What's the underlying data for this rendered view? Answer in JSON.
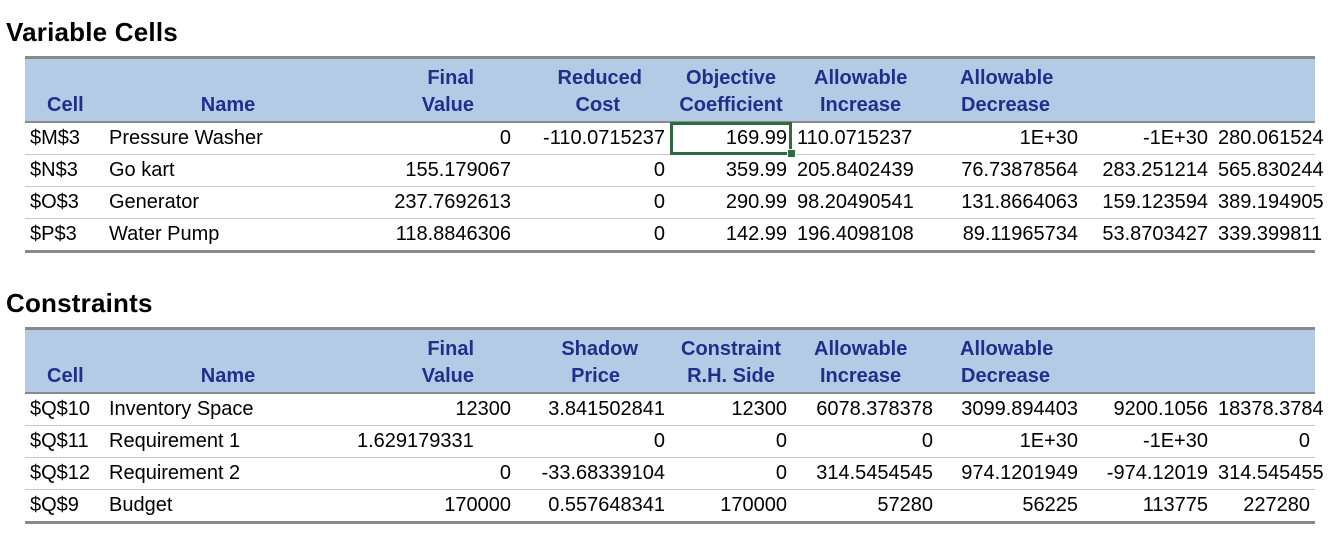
{
  "variable_cells": {
    "title": "Variable Cells",
    "header_top": [
      "",
      "",
      "Final",
      "Reduced",
      "Objective",
      "Allowable",
      "Allowable",
      "",
      ""
    ],
    "header_bottom": [
      "Cell",
      "Name",
      "Value",
      "Cost",
      "Coefficient",
      "Increase",
      "Decrease",
      "",
      ""
    ],
    "rows": [
      [
        "$M$3",
        "Pressure Washer",
        "0",
        "-110.0715237",
        "169.99",
        "110.0715237",
        "1E+30",
        "-1E+30",
        "280.061524"
      ],
      [
        "$N$3",
        "Go kart",
        "155.179067",
        "0",
        "359.99",
        "205.8402439",
        "76.73878564",
        "283.251214",
        "565.830244"
      ],
      [
        "$O$3",
        "Generator",
        "237.7692613",
        "0",
        "290.99",
        "98.20490541",
        "131.8664063",
        "159.123594",
        "389.194905"
      ],
      [
        "$P$3",
        "Water Pump",
        "118.8846306",
        "0",
        "142.99",
        "196.4098108",
        "89.11965734",
        "53.8703427",
        "339.399811"
      ]
    ]
  },
  "constraints": {
    "title": "Constraints",
    "header_top": [
      "",
      "",
      "Final",
      "Shadow",
      "Constraint",
      "Allowable",
      "Allowable",
      "",
      ""
    ],
    "header_bottom": [
      "Cell",
      "Name",
      "Value",
      "Price",
      "R.H. Side",
      "Increase",
      "Decrease",
      "",
      ""
    ],
    "rows": [
      [
        "$Q$10",
        "Inventory Space",
        "12300",
        "3.841502841",
        "12300",
        "6078.378378",
        "3099.894403",
        "9200.1056",
        "18378.3784"
      ],
      [
        "$Q$11",
        "Requirement 1",
        "1.629179331",
        "0",
        "0",
        "0",
        "1E+30",
        "-1E+30",
        "0"
      ],
      [
        "$Q$12",
        "Requirement 2",
        "0",
        "-33.68339104",
        "0",
        "314.5454545",
        "974.1201949",
        "-974.12019",
        "314.545455"
      ],
      [
        "$Q$9",
        "Budget",
        "170000",
        "0.557648341",
        "170000",
        "57280",
        "56225",
        "113775",
        "227280"
      ]
    ]
  },
  "colors": {
    "header_bg": "#b4cbe5",
    "header_text": "#1f2f8a",
    "selection": "#2e6b3f"
  }
}
